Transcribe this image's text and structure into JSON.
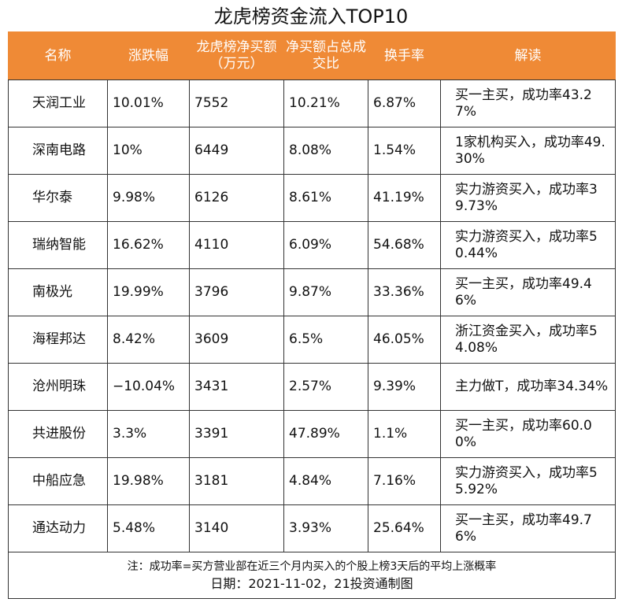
{
  "title": "龙虎榜资金流入TOP10",
  "headers": [
    "名称",
    "涨跌幅",
    "龙虎榜净买额（万元）",
    "净买额占总成交比",
    "换手率",
    "解读"
  ],
  "rows": [
    {
      "name": "天润工业",
      "change": "10.01%",
      "net_buy": "7552",
      "ratio": "10.21%",
      "turnover": "6.87%",
      "note": "买一主买，成功率43.27%"
    },
    {
      "name": "深南电路",
      "change": "10%",
      "net_buy": "6449",
      "ratio": "8.08%",
      "turnover": "1.54%",
      "note": "1家机构买入，成功率49.30%"
    },
    {
      "name": "华尔泰",
      "change": "9.98%",
      "net_buy": "6126",
      "ratio": "8.61%",
      "turnover": "41.19%",
      "note": "实力游资买入，成功率39.73%"
    },
    {
      "name": "瑞纳智能",
      "change": "16.62%",
      "net_buy": "4110",
      "ratio": "6.09%",
      "turnover": "54.68%",
      "note": "实力游资买入，成功率50.44%"
    },
    {
      "name": "南极光",
      "change": "19.99%",
      "net_buy": "3796",
      "ratio": "9.87%",
      "turnover": "33.36%",
      "note": "买一主买，成功率49.46%"
    },
    {
      "name": "海程邦达",
      "change": "8.42%",
      "net_buy": "3609",
      "ratio": "6.5%",
      "turnover": "46.05%",
      "note": "浙江资金买入，成功率54.08%"
    },
    {
      "name": "沧州明珠",
      "change": "−10.04%",
      "net_buy": "3431",
      "ratio": "2.57%",
      "turnover": "9.39%",
      "note": "主力做T，成功率34.34%"
    },
    {
      "name": "共进股份",
      "change": "3.3%",
      "net_buy": "3391",
      "ratio": "47.89%",
      "turnover": "1.1%",
      "note": "买一主买，成功率60.00%"
    },
    {
      "name": "中船应急",
      "change": "19.98%",
      "net_buy": "3181",
      "ratio": "4.84%",
      "turnover": "7.16%",
      "note": "实力游资买入，成功率55.92%"
    },
    {
      "name": "通达动力",
      "change": "5.48%",
      "net_buy": "3140",
      "ratio": "3.93%",
      "turnover": "25.64%",
      "note": "买一主买，成功率49.76%"
    }
  ],
  "footnote": "注：成功率=买方营业部在近三个月内买入的个股上榜3天后的平均上涨概率",
  "date_line": "日期：2021-11-02，21投资通制图",
  "colors": {
    "header_bg": "#ef8a36",
    "header_text": "#ffffff"
  }
}
